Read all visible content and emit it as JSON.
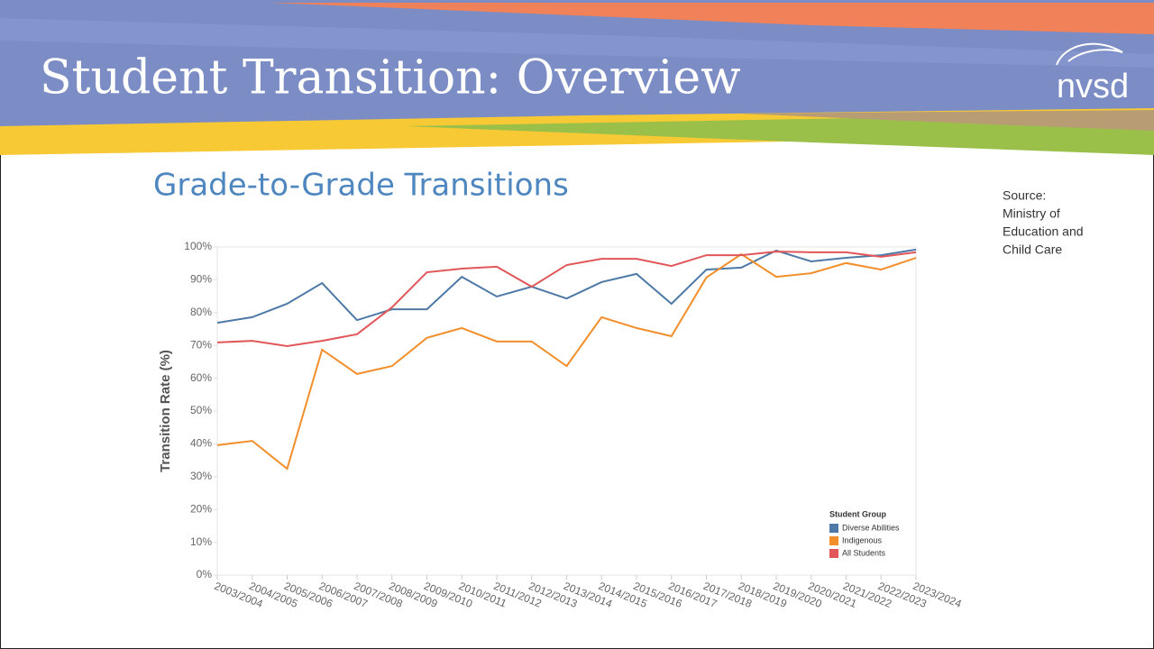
{
  "slide": {
    "title": "Student Transition: Overview",
    "logo": "nvsd",
    "source": [
      "Source:",
      "Ministry of",
      "Education and",
      "Child Care"
    ]
  },
  "chart_data": {
    "type": "line",
    "title": "Grade-to-Grade Transitions",
    "y_label": "Transition Rate (%)",
    "categories": [
      "2003/2004",
      "2004/2005",
      "2005/2006",
      "2006/2007",
      "2007/2008",
      "2008/2009",
      "2009/2010",
      "2010/2011",
      "2011/2012",
      "2012/2013",
      "2013/2014",
      "2014/2015",
      "2015/2016",
      "2016/2017",
      "2017/2018",
      "2018/2019",
      "2019/2020",
      "2020/2021",
      "2021/2022",
      "2022/2023",
      "2023/2024"
    ],
    "series": [
      {
        "name": "Diverse Abilities",
        "color": "#4e79a7",
        "values": [
          76.9,
          78.6,
          82.7,
          89.0,
          77.7,
          81.0,
          81.0,
          90.9,
          84.9,
          87.9,
          84.3,
          89.3,
          91.8,
          82.7,
          93.1,
          93.7,
          98.9,
          95.6,
          96.7,
          97.5,
          99.2
        ]
      },
      {
        "name": "Indigenous",
        "color": "#f28e2b",
        "values": [
          39.6,
          40.9,
          32.4,
          68.7,
          61.3,
          63.7,
          72.3,
          75.3,
          71.2,
          71.2,
          63.7,
          78.6,
          75.3,
          72.8,
          90.7,
          97.8,
          90.9,
          92.0,
          95.1,
          93.1,
          96.7
        ]
      },
      {
        "name": "All Students",
        "color": "#e15759",
        "values": [
          70.9,
          71.4,
          69.8,
          71.4,
          73.4,
          81.6,
          92.3,
          93.4,
          94.0,
          87.9,
          94.5,
          96.4,
          96.4,
          94.2,
          97.5,
          97.5,
          98.6,
          98.4,
          98.4,
          97.0,
          98.4
        ]
      }
    ],
    "legend_title": "Student Group",
    "legend": "lower right",
    "grid": false,
    "ylim": [
      0,
      100
    ],
    "yticks": [
      {
        "value": 0,
        "label": "0%"
      },
      {
        "value": 10,
        "label": "10%"
      },
      {
        "value": 20,
        "label": "20%"
      },
      {
        "value": 30,
        "label": "30%"
      },
      {
        "value": 40,
        "label": "40%"
      },
      {
        "value": 50,
        "label": "50%"
      },
      {
        "value": 60,
        "label": "60%"
      },
      {
        "value": 70,
        "label": "70%"
      },
      {
        "value": 80,
        "label": "80%"
      },
      {
        "value": 90,
        "label": "90%"
      },
      {
        "value": 100,
        "label": "100%"
      }
    ]
  }
}
